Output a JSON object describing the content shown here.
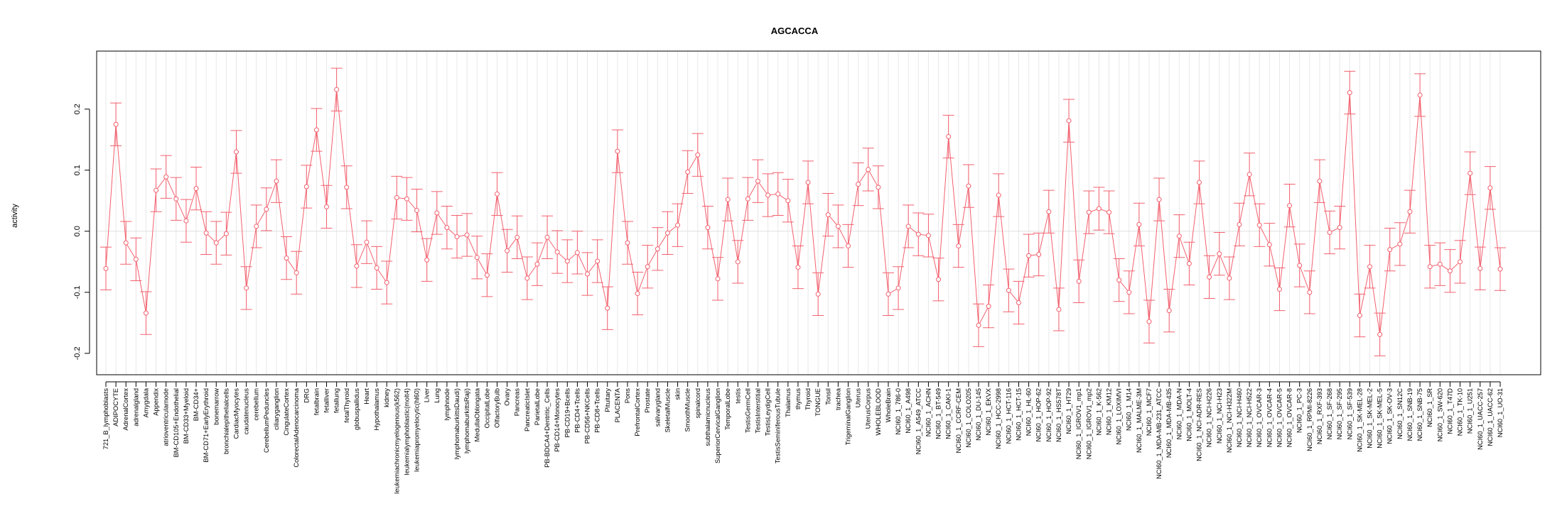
{
  "chart_data": {
    "type": "line",
    "title": "AGCACCA",
    "xlabel": "",
    "ylabel": "activity",
    "ylim": [
      -0.235,
      0.295
    ],
    "yticks": [
      -0.2,
      -0.1,
      0.0,
      0.1,
      0.2
    ],
    "ytick_labels": [
      "-0.2",
      "-0.1",
      "0.0",
      "0.1",
      "0.2"
    ],
    "grid": true,
    "colors": {
      "series": "#f2606e",
      "grid": "#e8e8e8",
      "frame": "#000000",
      "zero_line": "#e0e0e0"
    },
    "error_half_width": 0.035,
    "categories": [
      "721_B_lymphoblasts",
      "ADIPOCYTE",
      "AdrenalCortex",
      "adrenalgland",
      "Amygdala",
      "Appendix",
      "atrioventricularnode",
      "BM-CD105+Endothelial",
      "BM-CD33+Myeloid",
      "BM-CD34+",
      "BM-CD71+EarlyErythroid",
      "bonemarrow",
      "bronchialepithelialcells",
      "CardiacMyocytes",
      "caudatenucleus",
      "cerebellum",
      "CerebellumPeduncles",
      "ciliaryganglion",
      "CingulateCortex",
      "ColorectalAdenocarcinoma",
      "DRG",
      "fetalbrain",
      "fetalliver",
      "fetallung",
      "fetalThyroid",
      "globuspallidus",
      "Heart",
      "Hypothalamus",
      "kidney",
      "leukemiachronicmyelogenous(k562)",
      "leukemialymphoblastic(molt4)",
      "leukemiapromyelocytic(hl60)",
      "Liver",
      "Lung",
      "lymphnode",
      "lymphomaburkittsDaudi)",
      "lymphomaburkittsRaji)",
      "MedullaOblongata",
      "OccipitalLobe",
      "OlfactoryBulb",
      "Ovary",
      "Pancreas",
      "PancreaticIslet",
      "ParietalLobe",
      "PB-BDCA4+Dentritic_Cells",
      "PB-CD14+Monocytes",
      "PB-CD19+Bcells",
      "PB-CD4+Tcells",
      "PB-CD56+NKCells",
      "PB-CD8+Tcells",
      "Pituitary",
      "PLACENTA",
      "Pons",
      "PrefrontalCortex",
      "Prostate",
      "salivarygland",
      "SkeletalMuscle",
      "skin",
      "SmoothMuscle",
      "spinalcord",
      "subthalamicnucleus",
      "SuperiorCervicalGanglion",
      "TemporalLobe",
      "testis",
      "TestisGermCell",
      "TestisInterstitial",
      "TestisLeydigCell",
      "TestisSeminiferousTubule",
      "Thalamus",
      "thymus",
      "Thyroid",
      "TONGUE",
      "Tonsil",
      "trachea",
      "TrigeminalGanglion",
      "Uterus",
      "UterusCorpus",
      "WHOLEBLOOD",
      "WholeBrain",
      "NCI60_1_786-0",
      "NCI60_1_A498",
      "NCI60_1_A549_ATCC",
      "NCI60_1_ACHN",
      "NCI60_1_BT-549",
      "NCI60_1_CAKI-1",
      "NCI60_1_CCRF-CEM",
      "NCI60_1_COLO205",
      "NCI60_1_DU-145",
      "NCI60_1_EKVX",
      "NCI60_1_HCC-2998",
      "NCI60_1_HCT-116",
      "NCI60_1_HCT-15",
      "NCI60_1_HL-60",
      "NCI60_1_HOP-62",
      "NCI60_1_HOP-92",
      "NCI60_1_HS578T",
      "NCI60_1_HT29",
      "NCI60_1_IGROV1_mp1",
      "NCI60_1_IGROV1_mp2",
      "NCI60_1_K-562",
      "NCI60_1_KM12",
      "NCI60_1_LOXIMVI",
      "NCI60_1_M14",
      "NCI60_1_MALME-3M",
      "NCI60_1_MCF7",
      "NCI60_1_MDA-MB-231_ATCC",
      "NCI60_1_MDA-MB-435",
      "NCI60_1_MDA-N",
      "NCI60_1_MOLT-4",
      "NCI60_1_NCI-ADR-RES",
      "NCI60_1_NCI-H226",
      "NCI60_1_NCI-H23",
      "NCI60_1_NCI-H322M",
      "NCI60_1_NCI-H460",
      "NCI60_1_NCI-H522",
      "NCI60_1_OVCAR-3",
      "NCI60_1_OVCAR-4",
      "NCI60_1_OVCAR-5",
      "NCI60_1_OVCAR-8",
      "NCI60_1_PC-3",
      "NCI60_1_RPMI-8226",
      "NCI60_1_RXF-393",
      "NCI60_1_SF-268",
      "NCI60_1_SF-295",
      "NCI60_1_SF-539",
      "NCI60_1_SK-MEL-28",
      "NCI60_1_SK-MEL-2",
      "NCI60_1_SK-MEL-5",
      "NCI60_1_SK-OV-3",
      "NCI60_1_SN12C",
      "NCI60_1_SNB-19",
      "NCI60_1_SNB-75",
      "NCI60_1_SR",
      "NCI60_1_SW-620",
      "NCI60_1_T47D",
      "NCI60_1_TK-10",
      "NCI60_1_U251",
      "NCI60_1_UACC-257",
      "NCI60_1_UACC-62",
      "NCI60_1_UO-31"
    ],
    "values": [
      -0.061,
      0.175,
      -0.019,
      -0.046,
      -0.134,
      0.067,
      0.089,
      0.053,
      0.017,
      0.07,
      -0.003,
      -0.019,
      -0.004,
      0.13,
      -0.093,
      0.008,
      0.036,
      0.082,
      -0.044,
      -0.068,
      0.073,
      0.166,
      0.04,
      0.232,
      0.072,
      -0.057,
      -0.018,
      -0.06,
      -0.084,
      0.055,
      0.053,
      0.034,
      -0.047,
      0.03,
      0.006,
      -0.009,
      -0.006,
      -0.043,
      -0.072,
      0.061,
      -0.032,
      -0.01,
      -0.077,
      -0.054,
      -0.01,
      -0.034,
      -0.049,
      -0.035,
      -0.07,
      -0.049,
      -0.126,
      0.131,
      -0.019,
      -0.102,
      -0.058,
      -0.029,
      -0.003,
      0.01,
      0.097,
      0.125,
      0.006,
      -0.078,
      0.052,
      -0.05,
      0.053,
      0.082,
      0.059,
      0.061,
      0.05,
      -0.059,
      0.08,
      -0.103,
      0.027,
      0.008,
      -0.024,
      0.077,
      0.101,
      0.072,
      -0.103,
      -0.093,
      0.008,
      -0.005,
      -0.007,
      -0.079,
      0.155,
      -0.024,
      0.074,
      -0.154,
      -0.123,
      0.059,
      -0.097,
      -0.117,
      -0.04,
      -0.038,
      0.032,
      -0.128,
      0.181,
      -0.082,
      0.031,
      0.037,
      0.031,
      -0.08,
      -0.1,
      0.011,
      -0.148,
      0.052,
      -0.13,
      -0.008,
      -0.053,
      0.08,
      -0.075,
      -0.037,
      -0.077,
      0.011,
      0.093,
      0.01,
      -0.022,
      -0.095,
      0.042,
      -0.056,
      -0.1,
      0.082,
      -0.002,
      0.006,
      0.227,
      -0.138,
      -0.058,
      -0.169,
      -0.03,
      -0.021,
      0.032,
      0.223,
      -0.058,
      -0.054,
      -0.065,
      -0.05,
      0.095,
      -0.061,
      0.071,
      -0.062
    ]
  }
}
